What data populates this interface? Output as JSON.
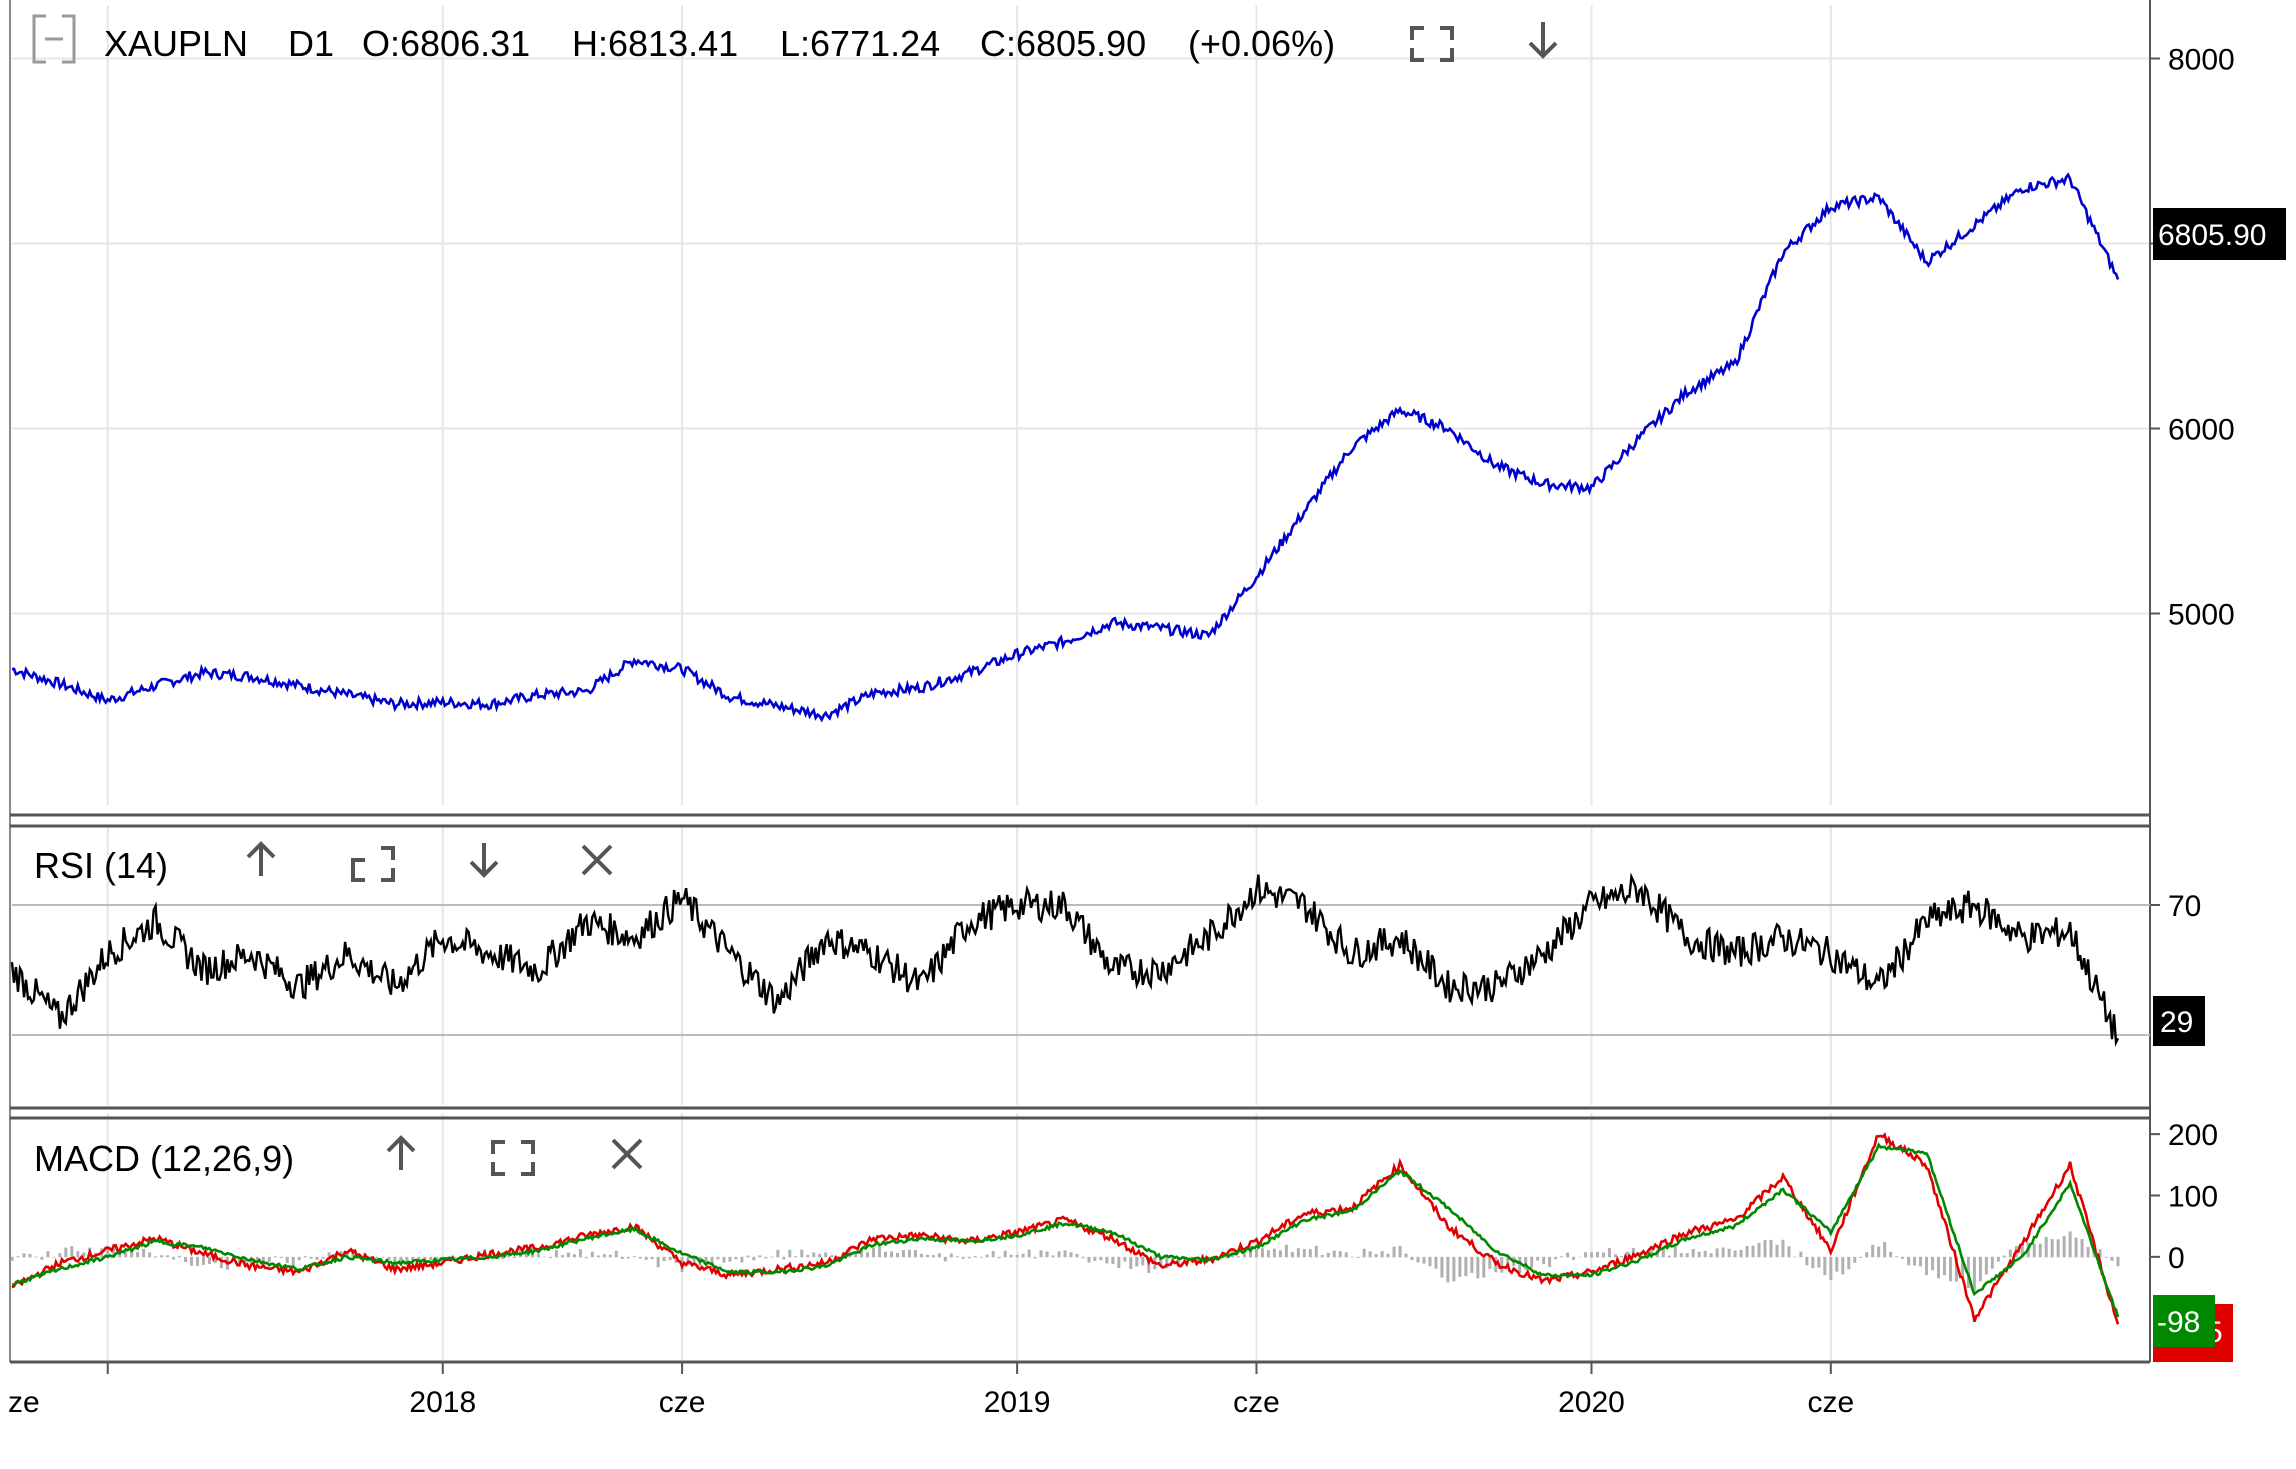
{
  "header": {
    "collapse_icon": "collapse-box-icon",
    "symbol": "XAUPLN",
    "timeframe": "D1",
    "open": "O:6806.31",
    "high": "H:6813.41",
    "low": "L:6771.24",
    "close": "C:6805.90",
    "change": "(+0.06%)",
    "maximize_icon": "maximize-icon",
    "move_down_icon": "arrow-down-icon"
  },
  "price_badge": "6805.90",
  "rsi_panel": {
    "title": "RSI (14)",
    "value_badge": "29",
    "icons": [
      "arrow-up-icon",
      "maximize-icon",
      "arrow-down-icon",
      "close-icon"
    ]
  },
  "macd_panel": {
    "title": "MACD (12,26,9)",
    "signal_badge": "-98",
    "macd_badge_partial": "5",
    "icons": [
      "arrow-up-icon",
      "maximize-icon",
      "close-icon"
    ]
  },
  "x_axis_labels": [
    "ze",
    "2018",
    "cze",
    "2019",
    "cze",
    "2020",
    "cze"
  ],
  "colors": {
    "price_line": "#0000cc",
    "rsi_line": "#000000",
    "macd_line": "#e00000",
    "signal_line": "#008800",
    "histogram": "#b0b0b0",
    "grid": "#e6e6e6",
    "badge_dark": "#000000",
    "badge_green": "#008800",
    "badge_red": "#e00000"
  },
  "chart_data": [
    {
      "type": "line",
      "panel": "price",
      "series": [
        {
          "name": "XAUPLN",
          "color": "#0000cc"
        }
      ],
      "x": [
        "2017-04",
        "2017-05",
        "2017-06",
        "2017-07",
        "2017-08",
        "2017-09",
        "2017-10",
        "2017-11",
        "2017-12",
        "2018-01",
        "2018-02",
        "2018-03",
        "2018-04",
        "2018-05",
        "2018-06",
        "2018-07",
        "2018-08",
        "2018-09",
        "2018-10",
        "2018-11",
        "2018-12",
        "2019-01",
        "2019-02",
        "2019-03",
        "2019-04",
        "2019-05",
        "2019-06",
        "2019-07",
        "2019-08",
        "2019-09",
        "2019-10",
        "2019-11",
        "2019-12",
        "2020-01",
        "2020-02",
        "2020-03",
        "2020-04",
        "2020-05",
        "2020-06",
        "2020-07",
        "2020-08",
        "2020-09",
        "2020-10",
        "2020-11",
        "2020-12"
      ],
      "values": [
        4700,
        4620,
        4530,
        4610,
        4680,
        4660,
        4610,
        4560,
        4510,
        4520,
        4510,
        4560,
        4580,
        4750,
        4700,
        4550,
        4500,
        4450,
        4570,
        4600,
        4680,
        4780,
        4850,
        4950,
        4920,
        4880,
        5200,
        5550,
        5900,
        6100,
        6000,
        5800,
        5700,
        5680,
        5950,
        6200,
        6350,
        6950,
        7200,
        7250,
        6900,
        7100,
        7300,
        7350,
        6806
      ],
      "y_ticks": [
        5000,
        6000,
        7000,
        8000
      ],
      "ylim": [
        4100,
        8100
      ],
      "last_value": 6805.9,
      "grid": true
    },
    {
      "type": "line",
      "panel": "rsi",
      "series": [
        {
          "name": "RSI (14)",
          "color": "#000000"
        }
      ],
      "values": [
        50,
        35,
        55,
        65,
        50,
        55,
        45,
        55,
        45,
        60,
        55,
        50,
        65,
        60,
        72,
        55,
        40,
        60,
        55,
        45,
        65,
        70,
        70,
        50,
        50,
        60,
        75,
        70,
        55,
        60,
        45,
        45,
        55,
        70,
        75,
        60,
        55,
        60,
        55,
        45,
        65,
        70,
        60,
        62,
        29
      ],
      "y_ticks": [
        70
      ],
      "ylim": [
        10,
        90
      ],
      "levels": [
        30,
        70
      ],
      "last_value": 29
    },
    {
      "type": "line",
      "panel": "macd",
      "series": [
        {
          "name": "MACD",
          "color": "#e00000"
        },
        {
          "name": "Signal",
          "color": "#008800"
        },
        {
          "name": "Histogram",
          "color": "#b0b0b0"
        }
      ],
      "macd": [
        -50,
        -10,
        10,
        30,
        5,
        -15,
        -25,
        10,
        -20,
        -10,
        5,
        15,
        35,
        50,
        -10,
        -30,
        -20,
        -10,
        30,
        35,
        25,
        40,
        60,
        30,
        -15,
        -5,
        25,
        70,
        80,
        150,
        50,
        -10,
        -40,
        -25,
        5,
        40,
        60,
        130,
        10,
        200,
        150,
        -100,
        20,
        150,
        -110
      ],
      "signal": [
        -45,
        -20,
        0,
        25,
        15,
        -5,
        -20,
        0,
        -10,
        -5,
        0,
        10,
        30,
        45,
        5,
        -25,
        -25,
        -15,
        20,
        30,
        25,
        35,
        55,
        40,
        0,
        -5,
        15,
        60,
        75,
        140,
        80,
        10,
        -30,
        -30,
        -5,
        30,
        50,
        110,
        40,
        180,
        170,
        -60,
        0,
        120,
        -98
      ],
      "y_ticks": [
        0,
        100,
        200
      ],
      "ylim": [
        -160,
        210
      ],
      "last_signal": -98
    }
  ]
}
